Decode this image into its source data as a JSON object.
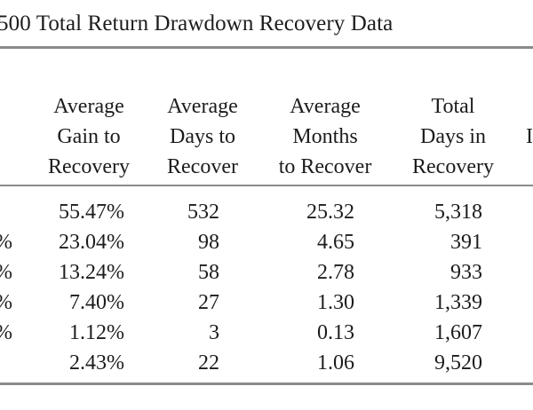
{
  "caption": "500 Total Return Drawdown Recovery Data",
  "columns": [
    {
      "lines": [
        "Average",
        "Gain to",
        "Recovery"
      ]
    },
    {
      "lines": [
        "Average",
        "Days to",
        "Recover"
      ]
    },
    {
      "lines": [
        "Average",
        "Months",
        "to Recover"
      ]
    },
    {
      "lines": [
        "Total",
        "Days in",
        "Recovery"
      ]
    }
  ],
  "rows": [
    {
      "lead": "",
      "gain": "55.47%",
      "days": "532",
      "months": "25.32",
      "total": "5,318"
    },
    {
      "lead": "%",
      "gain": "23.04%",
      "days": "98",
      "months": "4.65",
      "total": "391"
    },
    {
      "lead": "%",
      "gain": "13.24%",
      "days": "58",
      "months": "2.78",
      "total": "933"
    },
    {
      "lead": "%",
      "gain": "7.40%",
      "days": "27",
      "months": "1.30",
      "total": "1,339"
    },
    {
      "lead": "%",
      "gain": "1.12%",
      "days": "3",
      "months": "0.13",
      "total": "1,607"
    },
    {
      "lead": "",
      "gain": "2.43%",
      "days": "22",
      "months": "1.06",
      "total": "9,520"
    }
  ],
  "trailing_header_fragment": "I"
}
